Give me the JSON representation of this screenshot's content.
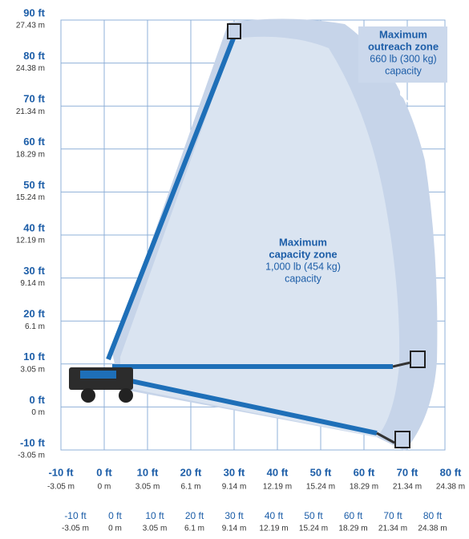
{
  "y_axis": {
    "ticks": [
      {
        "ft": "90 ft",
        "m": "27.43 m"
      },
      {
        "ft": "80 ft",
        "m": "24.38 m"
      },
      {
        "ft": "70 ft",
        "m": "21.34 m"
      },
      {
        "ft": "60 ft",
        "m": "18.29 m"
      },
      {
        "ft": "50 ft",
        "m": "15.24 m"
      },
      {
        "ft": "40 ft",
        "m": "12.19 m"
      },
      {
        "ft": "30 ft",
        "m": "9.14 m"
      },
      {
        "ft": "20 ft",
        "m": "6.1 m"
      },
      {
        "ft": "10 ft",
        "m": "3.05 m"
      },
      {
        "ft": "0 ft",
        "m": "0 m"
      },
      {
        "ft": "-10 ft",
        "m": "-3.05 m"
      }
    ]
  },
  "x_axis": {
    "ticks": [
      {
        "ft": "-10 ft",
        "m": "-3.05 m"
      },
      {
        "ft": "0 ft",
        "m": "0 m"
      },
      {
        "ft": "10 ft",
        "m": "3.05 m"
      },
      {
        "ft": "20 ft",
        "m": "6.1 m"
      },
      {
        "ft": "30 ft",
        "m": "9.14 m"
      },
      {
        "ft": "40 ft",
        "m": "12.19 m"
      },
      {
        "ft": "50 ft",
        "m": "15.24 m"
      },
      {
        "ft": "60 ft",
        "m": "18.29 m"
      },
      {
        "ft": "70 ft",
        "m": "21.34 m"
      },
      {
        "ft": "80 ft",
        "m": "24.38 m"
      }
    ]
  },
  "x_axis_repeat": {
    "ticks": [
      {
        "ft": "-10 ft",
        "m": "-3.05 m"
      },
      {
        "ft": "0 ft",
        "m": "0 m"
      },
      {
        "ft": "10 ft",
        "m": "3.05 m"
      },
      {
        "ft": "20 ft",
        "m": "6.1 m"
      },
      {
        "ft": "30 ft",
        "m": "9.14 m"
      },
      {
        "ft": "40 ft",
        "m": "12.19 m"
      },
      {
        "ft": "50 ft",
        "m": "15.24 m"
      },
      {
        "ft": "60 ft",
        "m": "18.29 m"
      },
      {
        "ft": "70 ft",
        "m": "21.34 m"
      },
      {
        "ft": "80 ft",
        "m": "24.38 m"
      }
    ]
  },
  "zones": [
    {
      "title_lines": [
        "Maximum",
        "outreach zone"
      ],
      "text_lines": [
        "660 lb (300 kg)",
        "capacity"
      ]
    },
    {
      "title_lines": [
        "Maximum",
        "capacity zone"
      ],
      "text_lines": [
        "1,000 lb (454 kg)",
        "capacity"
      ]
    }
  ]
}
